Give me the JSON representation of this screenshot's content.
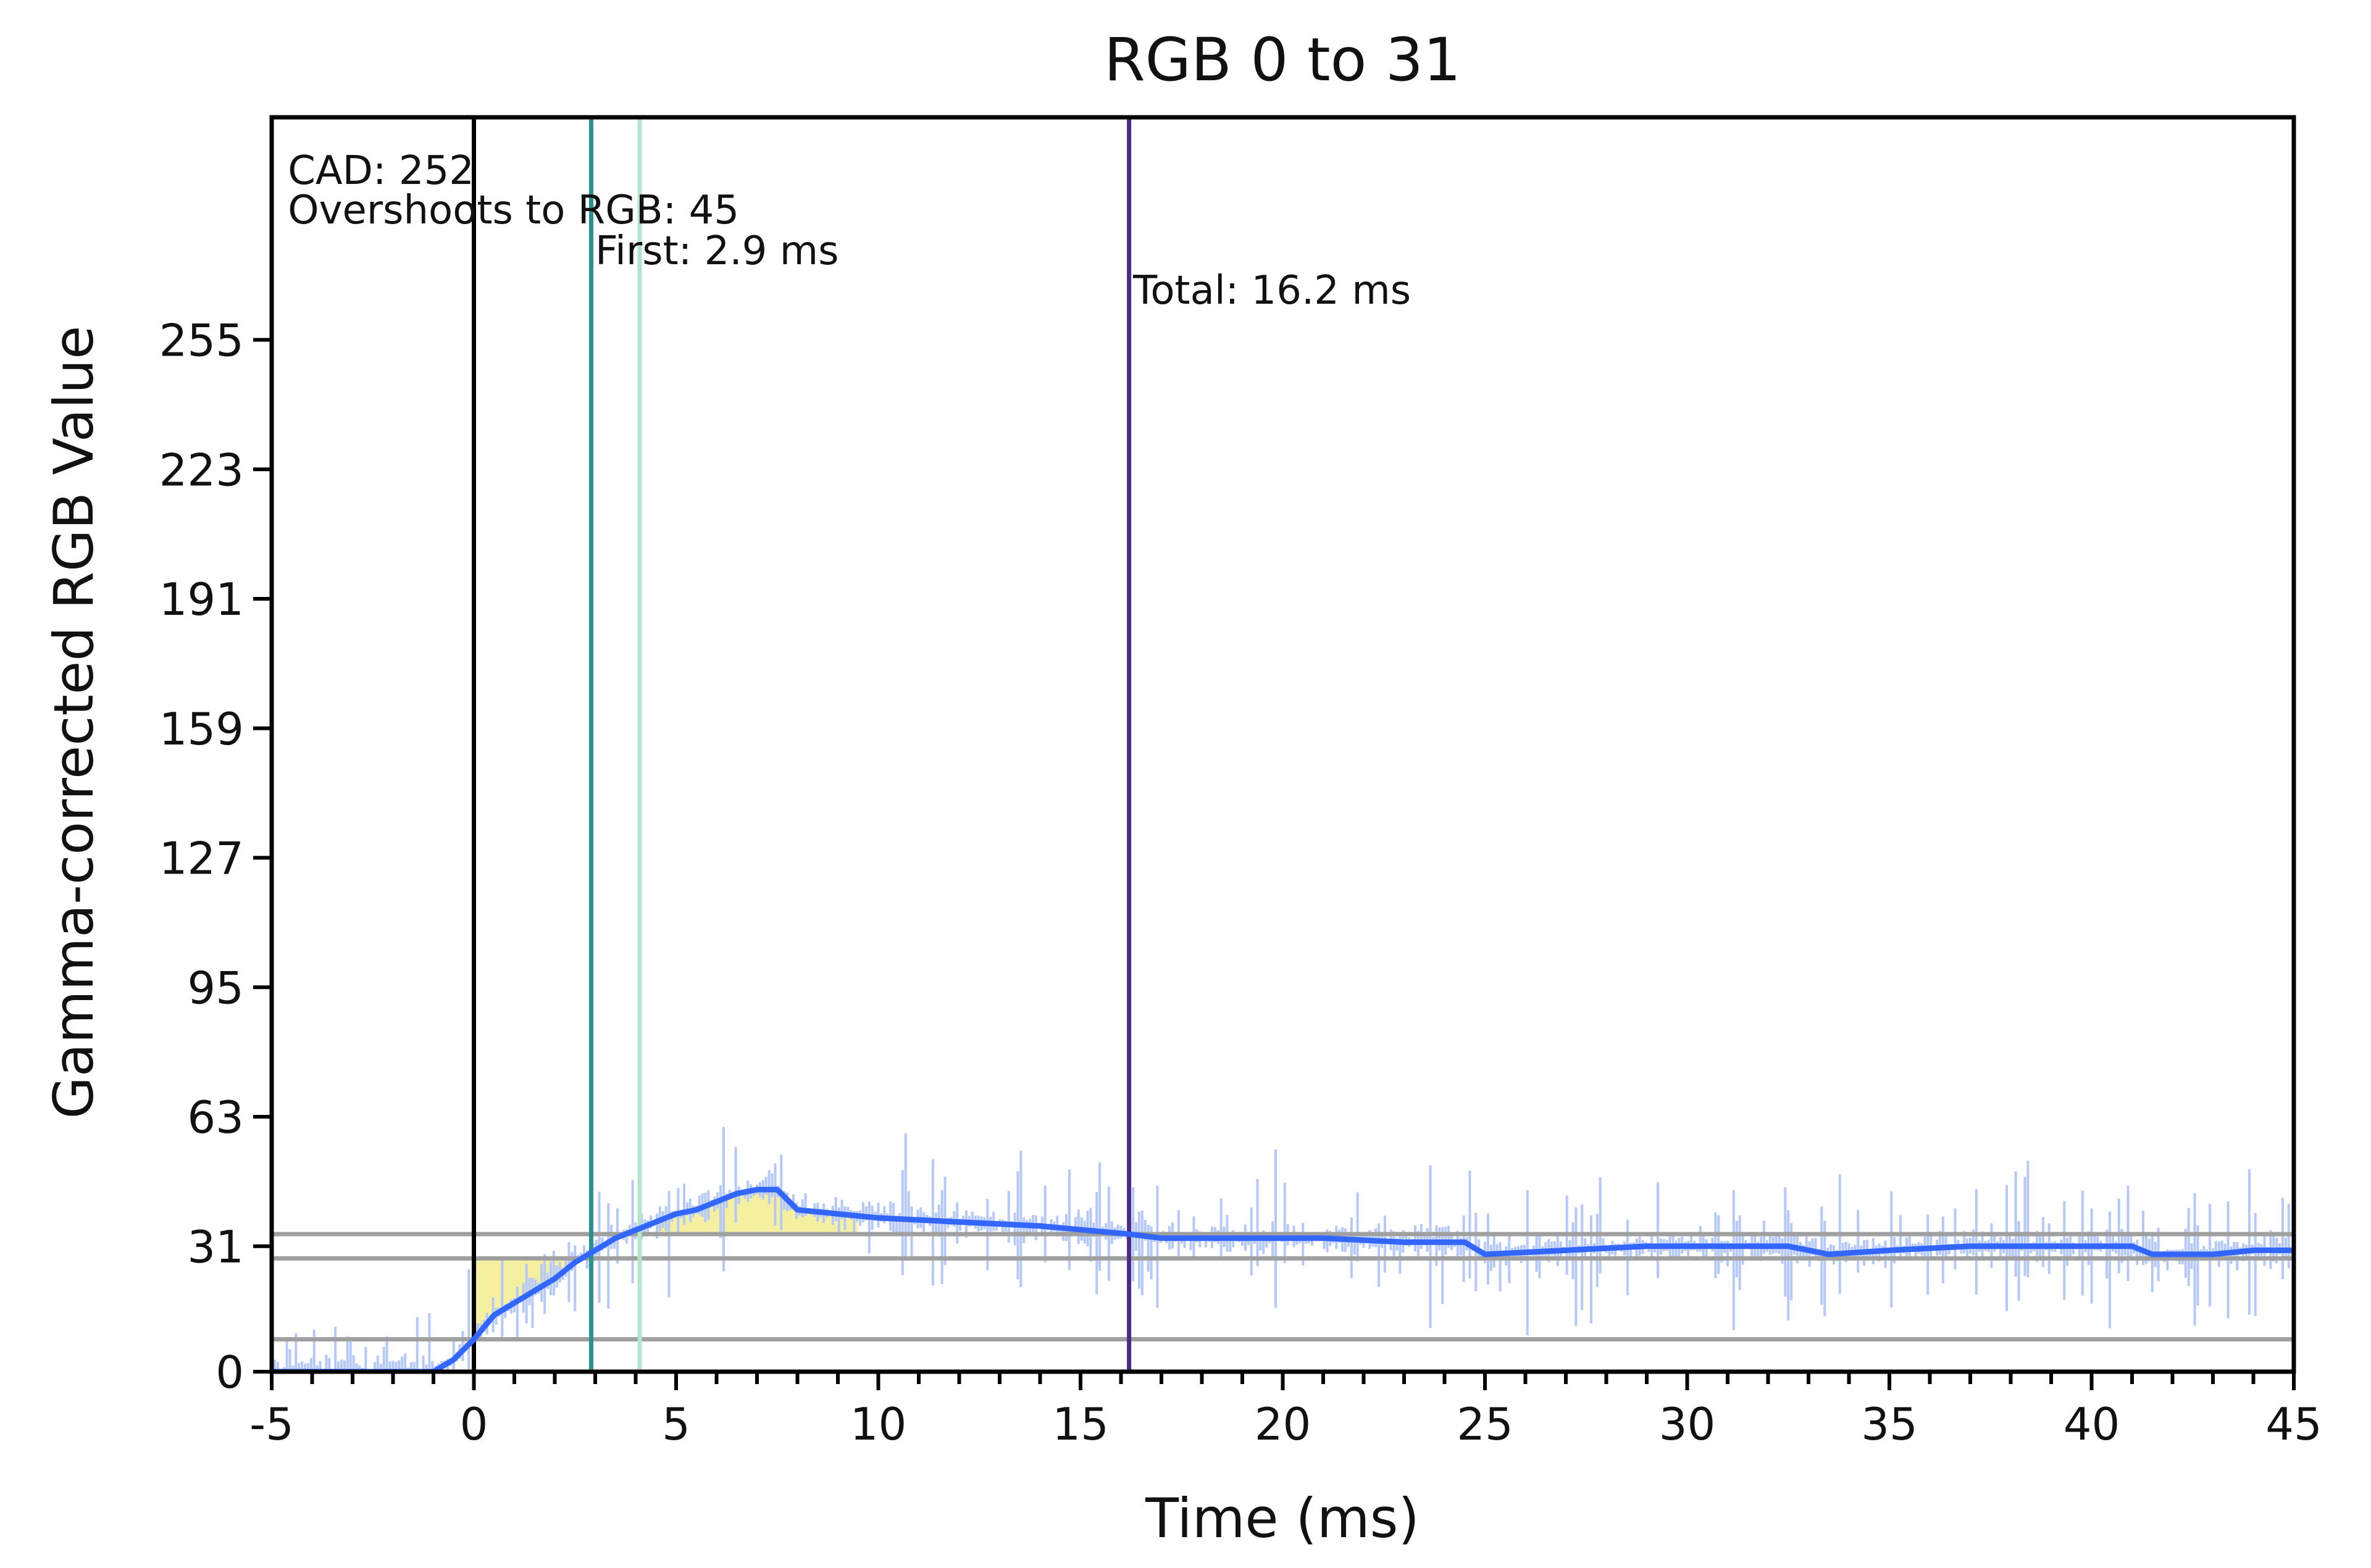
{
  "chart_data": {
    "type": "line",
    "title": "RGB 0 to 31",
    "xlabel": "Time (ms)",
    "ylabel": "Gamma-corrected RGB Value",
    "xlim": [
      -5,
      45
    ],
    "ylim": [
      0,
      310
    ],
    "x_ticks": [
      -5,
      0,
      5,
      10,
      15,
      20,
      25,
      30,
      35,
      40,
      45
    ],
    "x_tick_labels": [
      "-5",
      "0",
      "5",
      "10",
      "15",
      "20",
      "25",
      "30",
      "35",
      "40",
      "45"
    ],
    "y_ticks": [
      0,
      31,
      63,
      95,
      127,
      159,
      191,
      223,
      255
    ],
    "y_tick_labels": [
      "0",
      "31",
      "63",
      "95",
      "127",
      "159",
      "191",
      "223",
      "255"
    ],
    "grid": false,
    "reference_lines": [
      {
        "y": 8,
        "color": "#a0a0a0"
      },
      {
        "y": 28,
        "color": "#a0a0a0"
      },
      {
        "y": 34,
        "color": "#a0a0a0"
      }
    ],
    "vertical_markers": [
      {
        "x": 0,
        "color": "#000000"
      },
      {
        "x": 2.9,
        "color": "#2a9090"
      },
      {
        "x": 4.1,
        "color": "#b3e6c8"
      },
      {
        "x": 16.2,
        "color": "#4b2a8c"
      }
    ],
    "annotations": [
      {
        "text": "CAD: 252"
      },
      {
        "text": "Overshoots to RGB: 45"
      },
      {
        "text": "First: 2.9 ms"
      },
      {
        "text": "Total: 16.2 ms"
      }
    ],
    "series": [
      {
        "color": "#3366ff",
        "x": [
          -5,
          -1,
          -0.5,
          0,
          0.5,
          1,
          1.5,
          2,
          2.5,
          3,
          3.5,
          4,
          4.5,
          5,
          5.5,
          6,
          6.5,
          7,
          7.5,
          8,
          9,
          10,
          12,
          14,
          16.2,
          17,
          19,
          21,
          23,
          24.5,
          25,
          27,
          29,
          31,
          32.5,
          33.5,
          35,
          37,
          39,
          41,
          41.5,
          43,
          44,
          45
        ],
        "values": [
          0,
          0,
          3,
          8,
          14,
          17,
          20,
          23,
          27,
          30,
          33,
          35,
          37,
          39,
          40,
          42,
          44,
          45,
          45,
          40,
          39,
          38,
          37,
          36,
          34,
          33,
          33,
          33,
          32,
          32,
          29,
          30,
          31,
          31,
          31,
          29,
          30,
          31,
          31,
          31,
          29,
          29,
          30,
          30
        ]
      }
    ],
    "fill_regions_color": "#f5f0a0",
    "noise_color": "#b4c8fa"
  }
}
